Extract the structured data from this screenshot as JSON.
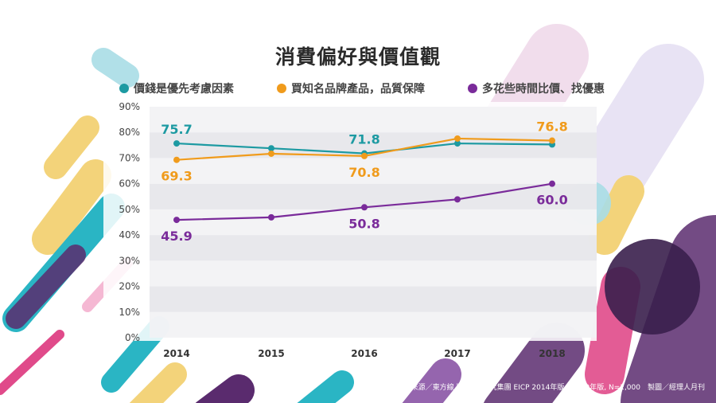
{
  "title": "消費偏好與價值觀",
  "source": "資料來源／東方線上消費者研究集團 EICP 2014年版、2019年版, N=2,000　製圖／經理人月刊",
  "colors": {
    "teal": "#1d9aa2",
    "orange": "#f09b1c",
    "purple": "#7a2b9a"
  },
  "chart_data": {
    "type": "line",
    "title": "消費偏好與價值觀",
    "x": [
      "2014",
      "2015",
      "2016",
      "2017",
      "2018"
    ],
    "ylim": [
      0,
      90
    ],
    "yticks": [
      "0%",
      "10%",
      "20%",
      "30%",
      "40%",
      "50%",
      "60%",
      "70%",
      "80%",
      "90%"
    ],
    "legend": "top",
    "series": [
      {
        "name": "價錢是優先考慮因素",
        "color": "#1d9aa2",
        "values": [
          75.7,
          73.8,
          71.8,
          75.7,
          75.3
        ],
        "labels": [
          "75.7",
          "",
          "71.8",
          "",
          ""
        ],
        "label_pos": [
          "above",
          "",
          "above",
          "",
          ""
        ]
      },
      {
        "name": "買知名品牌產品，品質保障",
        "color": "#f09b1c",
        "values": [
          69.3,
          71.7,
          70.8,
          77.6,
          76.8
        ],
        "labels": [
          "69.3",
          "",
          "70.8",
          "",
          "76.8"
        ],
        "label_pos": [
          "below",
          "",
          "below",
          "",
          "above"
        ]
      },
      {
        "name": "多花些時間比價、找優惠",
        "color": "#7a2b9a",
        "values": [
          45.9,
          46.9,
          50.8,
          53.9,
          60.0
        ],
        "labels": [
          "45.9",
          "",
          "50.8",
          "",
          "60.0"
        ],
        "label_pos": [
          "below",
          "",
          "below",
          "",
          "below"
        ]
      }
    ]
  }
}
